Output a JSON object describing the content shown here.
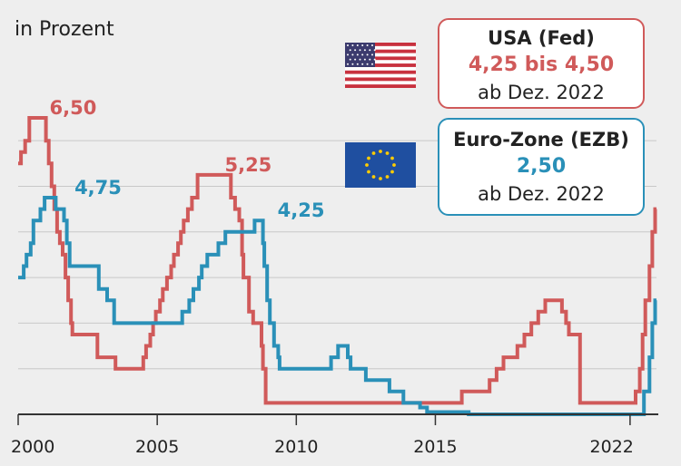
{
  "unit_label": "in Prozent",
  "legend": {
    "fed": {
      "title": "USA (Fed)",
      "value": "4,25 bis 4,50",
      "date": "ab Dez. 2022",
      "flag_icon": "us-flag-icon"
    },
    "ezb": {
      "title": "Euro-Zone (EZB)",
      "value": "2,50",
      "date": "ab Dez. 2022",
      "flag_icon": "eu-flag-icon"
    }
  },
  "chart_data": {
    "type": "line",
    "title": "",
    "xlabel": "",
    "ylabel": "in Prozent",
    "xlim": [
      2000.0,
      2022.95
    ],
    "ylim": [
      0,
      6.5
    ],
    "x_ticks": [
      2000,
      2005,
      2010,
      2015,
      2022
    ],
    "x_tick_labels": [
      "2000",
      "2005",
      "2010",
      "2015",
      "2022"
    ],
    "y_gridlines": [
      1,
      2,
      3,
      4,
      5,
      6
    ],
    "grid": true,
    "series": [
      {
        "name": "USA (Fed)",
        "color": "#d05a5a",
        "step": true,
        "points": [
          [
            2000.0,
            5.5
          ],
          [
            2000.1,
            5.75
          ],
          [
            2000.25,
            6.0
          ],
          [
            2000.4,
            6.5
          ],
          [
            2001.0,
            6.0
          ],
          [
            2001.1,
            5.5
          ],
          [
            2001.2,
            5.0
          ],
          [
            2001.3,
            4.5
          ],
          [
            2001.4,
            4.0
          ],
          [
            2001.5,
            3.75
          ],
          [
            2001.6,
            3.5
          ],
          [
            2001.7,
            3.0
          ],
          [
            2001.8,
            2.5
          ],
          [
            2001.9,
            2.0
          ],
          [
            2001.95,
            1.75
          ],
          [
            2002.85,
            1.25
          ],
          [
            2003.5,
            1.0
          ],
          [
            2004.5,
            1.25
          ],
          [
            2004.6,
            1.5
          ],
          [
            2004.75,
            1.75
          ],
          [
            2004.85,
            2.0
          ],
          [
            2004.95,
            2.25
          ],
          [
            2005.1,
            2.5
          ],
          [
            2005.2,
            2.75
          ],
          [
            2005.35,
            3.0
          ],
          [
            2005.5,
            3.25
          ],
          [
            2005.6,
            3.5
          ],
          [
            2005.75,
            3.75
          ],
          [
            2005.85,
            4.0
          ],
          [
            2005.95,
            4.25
          ],
          [
            2006.1,
            4.5
          ],
          [
            2006.25,
            4.75
          ],
          [
            2006.45,
            5.25
          ],
          [
            2007.65,
            4.75
          ],
          [
            2007.8,
            4.5
          ],
          [
            2007.95,
            4.25
          ],
          [
            2008.05,
            3.5
          ],
          [
            2008.1,
            3.0
          ],
          [
            2008.3,
            2.25
          ],
          [
            2008.45,
            2.0
          ],
          [
            2008.75,
            1.5
          ],
          [
            2008.8,
            1.0
          ],
          [
            2008.9,
            0.25
          ],
          [
            2015.95,
            0.5
          ],
          [
            2016.95,
            0.75
          ],
          [
            2017.2,
            1.0
          ],
          [
            2017.45,
            1.25
          ],
          [
            2017.95,
            1.5
          ],
          [
            2018.2,
            1.75
          ],
          [
            2018.45,
            2.0
          ],
          [
            2018.7,
            2.25
          ],
          [
            2018.95,
            2.5
          ],
          [
            2019.55,
            2.25
          ],
          [
            2019.7,
            2.0
          ],
          [
            2019.8,
            1.75
          ],
          [
            2020.2,
            0.25
          ],
          [
            2022.2,
            0.5
          ],
          [
            2022.35,
            1.0
          ],
          [
            2022.45,
            1.75
          ],
          [
            2022.55,
            2.5
          ],
          [
            2022.7,
            3.25
          ],
          [
            2022.8,
            4.0
          ],
          [
            2022.9,
            4.5
          ],
          [
            2022.95,
            4.5
          ]
        ]
      },
      {
        "name": "Euro-Zone (EZB)",
        "color": "#2a90b8",
        "step": true,
        "points": [
          [
            2000.0,
            3.0
          ],
          [
            2000.2,
            3.25
          ],
          [
            2000.3,
            3.5
          ],
          [
            2000.45,
            3.75
          ],
          [
            2000.55,
            4.25
          ],
          [
            2000.8,
            4.5
          ],
          [
            2000.95,
            4.75
          ],
          [
            2001.35,
            4.5
          ],
          [
            2001.65,
            4.25
          ],
          [
            2001.75,
            3.75
          ],
          [
            2001.85,
            3.25
          ],
          [
            2002.9,
            2.75
          ],
          [
            2003.2,
            2.5
          ],
          [
            2003.45,
            2.0
          ],
          [
            2005.9,
            2.25
          ],
          [
            2006.15,
            2.5
          ],
          [
            2006.3,
            2.75
          ],
          [
            2006.5,
            3.0
          ],
          [
            2006.6,
            3.25
          ],
          [
            2006.8,
            3.5
          ],
          [
            2007.2,
            3.75
          ],
          [
            2007.45,
            4.0
          ],
          [
            2008.5,
            4.25
          ],
          [
            2008.8,
            3.75
          ],
          [
            2008.85,
            3.25
          ],
          [
            2008.95,
            2.5
          ],
          [
            2009.05,
            2.0
          ],
          [
            2009.2,
            1.5
          ],
          [
            2009.35,
            1.25
          ],
          [
            2009.4,
            1.0
          ],
          [
            2011.25,
            1.25
          ],
          [
            2011.5,
            1.5
          ],
          [
            2011.85,
            1.25
          ],
          [
            2011.95,
            1.0
          ],
          [
            2012.5,
            0.75
          ],
          [
            2013.35,
            0.5
          ],
          [
            2013.85,
            0.25
          ],
          [
            2014.45,
            0.15
          ],
          [
            2014.7,
            0.05
          ],
          [
            2016.2,
            0.0
          ],
          [
            2022.5,
            0.5
          ],
          [
            2022.7,
            1.25
          ],
          [
            2022.8,
            2.0
          ],
          [
            2022.9,
            2.5
          ],
          [
            2022.95,
            2.5
          ]
        ]
      }
    ],
    "annotations": [
      {
        "text": "6,50",
        "series": 0,
        "x": 2000.8,
        "y": 6.5
      },
      {
        "text": "5,25",
        "series": 0,
        "x": 2007.1,
        "y": 5.25
      },
      {
        "text": "4,75",
        "series": 1,
        "x": 2001.7,
        "y": 4.75
      },
      {
        "text": "4,25",
        "series": 1,
        "x": 2009.0,
        "y": 4.25
      }
    ]
  }
}
